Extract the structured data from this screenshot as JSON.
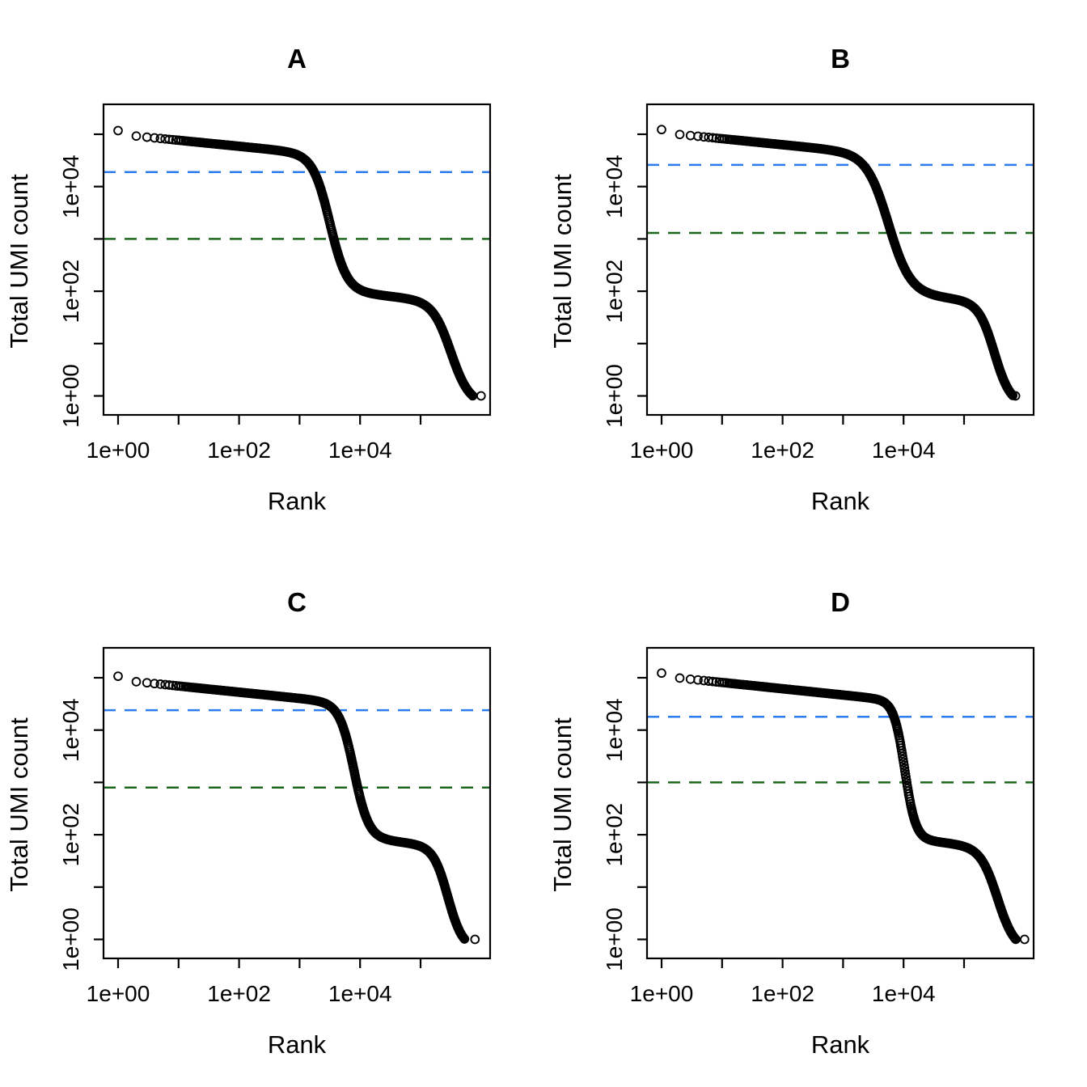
{
  "colors": {
    "background": "#ffffff",
    "point_stroke": "#000000",
    "knee_line": "#2a7bee",
    "inflection_line": "#1c661c",
    "text": "#000000"
  },
  "chart_data": {
    "type": "scatter",
    "x_scale": "log10",
    "y_scale": "log10",
    "xlabel": "Rank",
    "ylabel": "Total UMI count",
    "point_style": "open-circle",
    "grid": "off",
    "legend": "none",
    "x_ticks": [
      {
        "log10": 0,
        "label": "1e+00"
      },
      {
        "log10": 1,
        "label": ""
      },
      {
        "log10": 2,
        "label": "1e+02"
      },
      {
        "log10": 3,
        "label": ""
      },
      {
        "log10": 4,
        "label": "1e+04"
      },
      {
        "log10": 5,
        "label": ""
      }
    ],
    "y_ticks": [
      {
        "log10": 0,
        "label": "1e+00"
      },
      {
        "log10": 1,
        "label": ""
      },
      {
        "log10": 2,
        "label": "1e+02"
      },
      {
        "log10": 3,
        "label": ""
      },
      {
        "log10": 4,
        "label": "1e+04"
      },
      {
        "log10": 5,
        "label": ""
      }
    ],
    "xlim_log10": [
      -0.25,
      6.16
    ],
    "ylim_log10": [
      -0.44,
      5.59
    ],
    "panels": [
      {
        "title": "A",
        "knee_threshold_count": 19000,
        "inflection_threshold_count": 1000,
        "top_count": 117000,
        "max_rank": 1000000,
        "curve_model": {
          "top_log10": 5.0,
          "first_point_boost": 0.07,
          "plateau_slope": 0.115,
          "knee_drop": 2.58,
          "knee_log10_rank": 3.5,
          "knee_width": 0.14,
          "tail_drop": 1.9,
          "tail_log10_rank": 5.5,
          "tail_width": 0.15,
          "max_log10_rank": 6.0
        },
        "anchor_points": [
          [
            1,
            117000
          ],
          [
            3,
            88000
          ],
          [
            10,
            77000
          ],
          [
            100,
            59000
          ],
          [
            1000,
            38000
          ],
          [
            1740,
            19000
          ],
          [
            3162,
            2000
          ],
          [
            4270,
            1000
          ],
          [
            10000,
            110
          ],
          [
            31600,
            80
          ],
          [
            100000,
            56
          ],
          [
            316000,
            7
          ],
          [
            794000,
            1
          ],
          [
            1000000,
            1
          ]
        ]
      },
      {
        "title": "B",
        "knee_threshold_count": 26000,
        "inflection_threshold_count": 1300,
        "top_count": 123000,
        "max_rank": 760000,
        "curve_model": {
          "top_log10": 5.03,
          "first_point_boost": 0.06,
          "plateau_slope": 0.115,
          "knee_drop": 2.62,
          "knee_log10_rank": 3.75,
          "knee_width": 0.18,
          "tail_drop": 1.9,
          "tail_log10_rank": 5.5,
          "tail_width": 0.13,
          "max_log10_rank": 5.85
        },
        "anchor_points": [
          [
            1,
            123000
          ],
          [
            10,
            82000
          ],
          [
            100,
            63000
          ],
          [
            1000,
            44000
          ],
          [
            2000,
            26000
          ],
          [
            6300,
            1300
          ],
          [
            10000,
            300
          ],
          [
            20000,
            110
          ],
          [
            63000,
            72
          ],
          [
            200000,
            31
          ],
          [
            500000,
            3
          ],
          [
            760000,
            1
          ]
        ]
      },
      {
        "title": "C",
        "knee_threshold_count": 24000,
        "inflection_threshold_count": 800,
        "top_count": 107000,
        "max_rank": 830000,
        "curve_model": {
          "top_log10": 4.96,
          "first_point_boost": 0.07,
          "plateau_slope": 0.118,
          "knee_drop": 2.55,
          "knee_log10_rank": 3.9,
          "knee_width": 0.12,
          "tail_drop": 1.9,
          "tail_log10_rank": 5.45,
          "tail_width": 0.12,
          "max_log10_rank": 5.9
        },
        "anchor_points": [
          [
            1,
            107000
          ],
          [
            10,
            70000
          ],
          [
            100,
            53000
          ],
          [
            1000,
            40000
          ],
          [
            4200,
            24000
          ],
          [
            8900,
            800
          ],
          [
            16000,
            126
          ],
          [
            50000,
            80
          ],
          [
            160000,
            39
          ],
          [
            500000,
            3
          ],
          [
            830000,
            1
          ]
        ]
      },
      {
        "title": "D",
        "knee_threshold_count": 18000,
        "inflection_threshold_count": 1000,
        "top_count": 123000,
        "max_rank": 1000000,
        "curve_model": {
          "top_log10": 5.03,
          "first_point_boost": 0.06,
          "plateau_slope": 0.12,
          "knee_drop": 2.62,
          "knee_log10_rank": 4.02,
          "knee_width": 0.09,
          "tail_drop": 1.9,
          "tail_log10_rank": 5.55,
          "tail_width": 0.14,
          "max_log10_rank": 6.0
        },
        "anchor_points": [
          [
            1,
            123000
          ],
          [
            10,
            81000
          ],
          [
            100,
            62000
          ],
          [
            1000,
            47000
          ],
          [
            6800,
            18000
          ],
          [
            11200,
            1000
          ],
          [
            22000,
            90
          ],
          [
            100000,
            59
          ],
          [
            500000,
            2
          ],
          [
            1000000,
            1
          ]
        ]
      }
    ]
  }
}
